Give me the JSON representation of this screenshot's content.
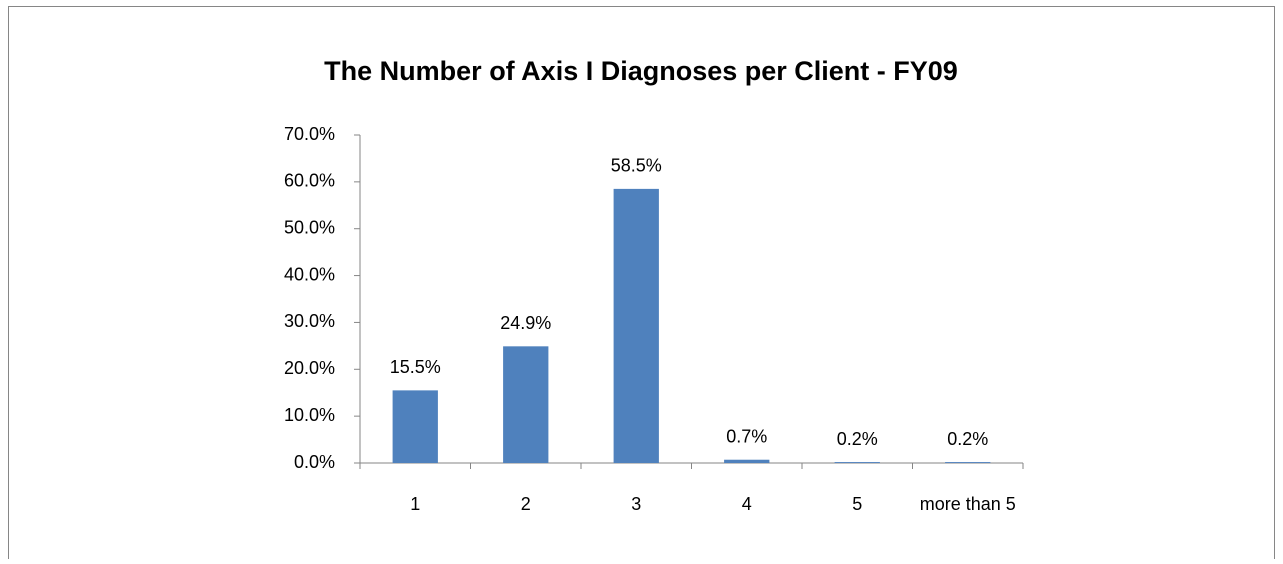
{
  "chart_data": {
    "type": "bar",
    "title": "The Number of Axis I Diagnoses per Client - FY09",
    "categories": [
      "1",
      "2",
      "3",
      "4",
      "5",
      "more than 5"
    ],
    "values": [
      15.5,
      24.9,
      58.5,
      0.7,
      0.2,
      0.2
    ],
    "value_labels": [
      "15.5%",
      "24.9%",
      "58.5%",
      "0.7%",
      "0.2%",
      "0.2%"
    ],
    "color": "#4f81bd",
    "ylim": [
      0,
      70
    ],
    "yticks": [
      {
        "value": 0,
        "label": "0.0%"
      },
      {
        "value": 10,
        "label": "10.0%"
      },
      {
        "value": 20,
        "label": "20.0%"
      },
      {
        "value": 30,
        "label": "30.0%"
      },
      {
        "value": 40,
        "label": "40.0%"
      },
      {
        "value": 50,
        "label": "50.0%"
      },
      {
        "value": 60,
        "label": "60.0%"
      },
      {
        "value": 70,
        "label": "70.0%"
      }
    ],
    "grid": false
  }
}
